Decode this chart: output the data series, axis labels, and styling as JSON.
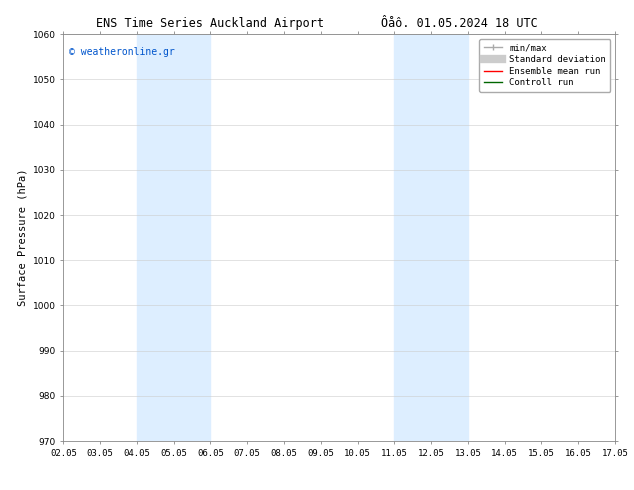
{
  "title_left": "ENS Time Series Auckland Airport",
  "title_right": "Ôåô. 01.05.2024 18 UTC",
  "ylabel": "Surface Pressure (hPa)",
  "ylim": [
    970,
    1060
  ],
  "yticks": [
    970,
    980,
    990,
    1000,
    1010,
    1020,
    1030,
    1040,
    1050,
    1060
  ],
  "xtick_labels": [
    "02.05",
    "03.05",
    "04.05",
    "05.05",
    "06.05",
    "07.05",
    "08.05",
    "09.05",
    "10.05",
    "11.05",
    "12.05",
    "13.05",
    "14.05",
    "15.05",
    "16.05",
    "17.05"
  ],
  "xtick_positions": [
    0,
    1,
    2,
    3,
    4,
    5,
    6,
    7,
    8,
    9,
    10,
    11,
    12,
    13,
    14,
    15
  ],
  "shaded_regions": [
    {
      "xmin": 2,
      "xmax": 4,
      "color": "#ddeeff"
    },
    {
      "xmin": 9,
      "xmax": 11,
      "color": "#ddeeff"
    }
  ],
  "watermark": "© weatheronline.gr",
  "watermark_color": "#0055cc",
  "legend_entries": [
    {
      "label": "min/max",
      "color": "#aaaaaa",
      "lw": 1.0
    },
    {
      "label": "Standard deviation",
      "color": "#cccccc",
      "lw": 6
    },
    {
      "label": "Ensemble mean run",
      "color": "#ff0000",
      "lw": 1.0
    },
    {
      "label": "Controll run",
      "color": "#006600",
      "lw": 1.0
    }
  ],
  "bg_color": "#ffffff",
  "grid_color": "#cccccc",
  "title_fontsize": 8.5,
  "tick_fontsize": 6.5,
  "ylabel_fontsize": 7.5,
  "watermark_fontsize": 7.0,
  "legend_fontsize": 6.5
}
